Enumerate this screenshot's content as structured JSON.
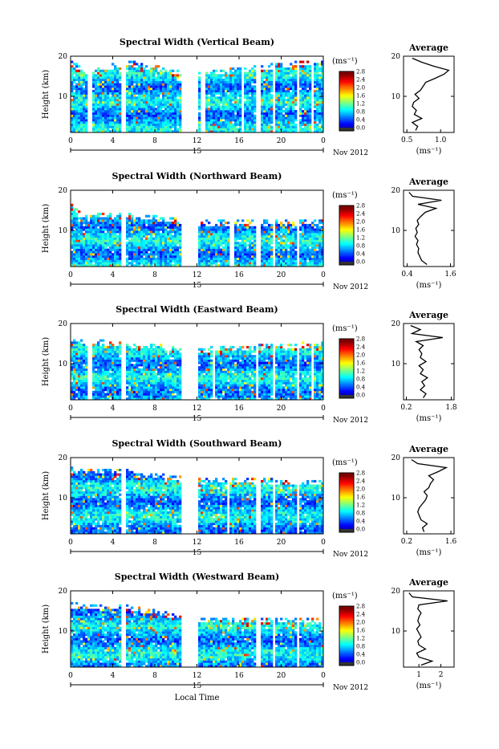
{
  "chart_data": [
    {
      "type": "heatmap",
      "title": "Spectral Width (Vertical Beam)",
      "ylabel": "Height (km)",
      "x_ticks": [
        "0",
        "4",
        "8",
        "12",
        "16",
        "20",
        "0"
      ],
      "y_ticks": [
        "20",
        "10"
      ],
      "ylim": [
        1,
        20
      ],
      "xlim": [
        0,
        24
      ],
      "date_label": "15",
      "month_label": "Nov 2012",
      "colorbar": {
        "unit": "(ms⁻¹)",
        "ticks": [
          "2.8",
          "2.4",
          "2.0",
          "1.6",
          "1.2",
          "0.8",
          "0.4",
          "0.0"
        ],
        "range": [
          0,
          2.8
        ]
      },
      "data_gaps_hours": [
        [
          1.7,
          2.0
        ],
        [
          4.9,
          5.3
        ],
        [
          10.6,
          12.1
        ],
        [
          12.3,
          12.8
        ],
        [
          16.2,
          16.4
        ],
        [
          17.7,
          18.0
        ],
        [
          19.2,
          19.4
        ],
        [
          21.5,
          21.8
        ],
        [
          22.8,
          23.0
        ]
      ],
      "top_km_by_hour": [
        [
          0,
          19.0
        ],
        [
          1.7,
          16.4
        ],
        [
          5.3,
          19.0
        ],
        [
          11.5,
          16.0
        ],
        [
          24,
          19.5
        ]
      ],
      "average_profile": {
        "title": "Average",
        "xlabel": "(ms⁻¹)",
        "x_ticks": [
          "0.5",
          "1.0"
        ],
        "xlim": [
          0.45,
          1.2
        ],
        "y_ticks": [
          "20",
          "10"
        ],
        "ylim": [
          1,
          20
        ],
        "height_km": [
          1.5,
          2.5,
          3.5,
          4.5,
          5.5,
          6.5,
          7.5,
          8.5,
          9.5,
          10.5,
          11.5,
          12.5,
          13.5,
          14.5,
          15.5,
          16.5,
          17.5,
          18.5,
          19.5
        ],
        "values": [
          0.63,
          0.66,
          0.58,
          0.72,
          0.61,
          0.64,
          0.58,
          0.6,
          0.68,
          0.62,
          0.7,
          0.74,
          0.78,
          0.92,
          1.05,
          1.12,
          0.9,
          0.72,
          0.58
        ]
      }
    },
    {
      "type": "heatmap",
      "title": "Spectral Width (Northward Beam)",
      "ylabel": "Height (km)",
      "x_ticks": [
        "0",
        "4",
        "8",
        "12",
        "16",
        "20",
        "0"
      ],
      "y_ticks": [
        "20",
        "10"
      ],
      "ylim": [
        1,
        20
      ],
      "xlim": [
        0,
        24
      ],
      "date_label": "15",
      "month_label": "Nov 2012",
      "colorbar": {
        "unit": "(ms⁻¹)",
        "ticks": [
          "2.8",
          "2.4",
          "2.0",
          "1.6",
          "1.2",
          "0.8",
          "0.4",
          "0.0"
        ],
        "range": [
          0,
          2.8
        ]
      },
      "data_gaps_hours": [
        [
          4.9,
          5.3
        ],
        [
          10.6,
          12.1
        ],
        [
          15.2,
          15.5
        ],
        [
          17.7,
          18.0
        ],
        [
          19.2,
          19.4
        ],
        [
          21.5,
          21.7
        ]
      ],
      "top_km_by_hour": [
        [
          0,
          17.5
        ],
        [
          1.0,
          14.0
        ],
        [
          5.3,
          14.5
        ],
        [
          12.0,
          12.5
        ],
        [
          24,
          12.5
        ]
      ],
      "average_profile": {
        "title": "Average",
        "xlabel": "(ms⁻¹)",
        "x_ticks": [
          "0.4",
          "1.6"
        ],
        "xlim": [
          0.3,
          1.7
        ],
        "y_ticks": [
          "20",
          "10"
        ],
        "ylim": [
          1,
          20
        ],
        "height_km": [
          1.5,
          2.5,
          3.5,
          4.5,
          5.5,
          6.5,
          7.5,
          8.5,
          9.5,
          10.5,
          11.5,
          12.5,
          13.5,
          14.5,
          15.5,
          16.5,
          17.5,
          18.5,
          19.5
        ],
        "values": [
          0.95,
          0.8,
          0.75,
          0.7,
          0.72,
          0.66,
          0.7,
          0.62,
          0.68,
          0.64,
          0.72,
          0.68,
          0.78,
          0.9,
          1.2,
          0.7,
          1.35,
          0.55,
          0.45
        ]
      }
    },
    {
      "type": "heatmap",
      "title": "Spectral Width (Eastward Beam)",
      "ylabel": "Height (km)",
      "x_ticks": [
        "0",
        "4",
        "8",
        "12",
        "16",
        "20",
        "0"
      ],
      "y_ticks": [
        "20",
        "10"
      ],
      "ylim": [
        1,
        20
      ],
      "xlim": [
        0,
        24
      ],
      "date_label": "15",
      "month_label": "Nov 2012",
      "colorbar": {
        "unit": "(ms⁻¹)",
        "ticks": [
          "2.8",
          "2.4",
          "2.0",
          "1.6",
          "1.2",
          "0.8",
          "0.4",
          "0.0"
        ],
        "range": [
          0,
          2.8
        ]
      },
      "data_gaps_hours": [
        [
          1.7,
          2.0
        ],
        [
          4.9,
          5.3
        ],
        [
          10.6,
          12.1
        ],
        [
          13.5,
          13.8
        ],
        [
          17.5,
          17.8
        ],
        [
          19.2,
          19.4
        ],
        [
          21.5,
          21.7
        ],
        [
          22.8,
          23.0
        ]
      ],
      "top_km_by_hour": [
        [
          0,
          16.3
        ],
        [
          5.3,
          15.5
        ],
        [
          12.0,
          14.0
        ],
        [
          24,
          15.5
        ]
      ],
      "average_profile": {
        "title": "Average",
        "xlabel": "(ms⁻¹)",
        "x_ticks": [
          "0.2",
          "1.8"
        ],
        "xlim": [
          0.1,
          1.9
        ],
        "y_ticks": [
          "20",
          "10"
        ],
        "ylim": [
          1,
          20
        ],
        "height_km": [
          1.5,
          2.5,
          3.5,
          4.5,
          5.5,
          6.5,
          7.5,
          8.5,
          9.5,
          10.5,
          11.5,
          12.5,
          13.5,
          14.5,
          15.5,
          16.5,
          17.5,
          18.5,
          19.5
        ],
        "values": [
          0.8,
          0.9,
          0.7,
          0.85,
          0.75,
          0.95,
          0.7,
          0.8,
          0.65,
          0.9,
          0.7,
          0.75,
          0.65,
          0.8,
          0.55,
          1.5,
          0.4,
          0.7,
          0.35
        ]
      }
    },
    {
      "type": "heatmap",
      "title": "Spectral Width (Southward Beam)",
      "ylabel": "Height (km)",
      "x_ticks": [
        "0",
        "4",
        "8",
        "12",
        "16",
        "20",
        "0"
      ],
      "y_ticks": [
        "20",
        "10"
      ],
      "ylim": [
        1,
        20
      ],
      "xlim": [
        0,
        24
      ],
      "date_label": "15",
      "month_label": "Nov 2012",
      "colorbar": {
        "unit": "(ms⁻¹)",
        "ticks": [
          "2.8",
          "2.4",
          "2.0",
          "1.6",
          "1.2",
          "0.8",
          "0.4",
          "0.0"
        ],
        "range": [
          0,
          2.8
        ]
      },
      "data_gaps_hours": [
        [
          4.9,
          5.3
        ],
        [
          10.6,
          12.1
        ],
        [
          14.8,
          15.0
        ],
        [
          17.7,
          18.0
        ],
        [
          19.2,
          19.4
        ],
        [
          21.5,
          21.7
        ]
      ],
      "top_km_by_hour": [
        [
          0,
          17.5
        ],
        [
          5.3,
          17.0
        ],
        [
          12.0,
          15.0
        ],
        [
          24,
          14.5
        ]
      ],
      "average_profile": {
        "title": "Average",
        "xlabel": "(ms⁻¹)",
        "x_ticks": [
          "0.2",
          "1.6"
        ],
        "xlim": [
          0.1,
          1.7
        ],
        "y_ticks": [
          "20",
          "10"
        ],
        "ylim": [
          1,
          20
        ],
        "height_km": [
          1.5,
          2.5,
          3.5,
          4.5,
          5.5,
          6.5,
          7.5,
          8.5,
          9.5,
          10.5,
          11.5,
          12.5,
          13.5,
          14.5,
          15.5,
          16.5,
          17.5,
          18.5,
          19.5
        ],
        "values": [
          0.75,
          0.7,
          0.85,
          0.65,
          0.6,
          0.55,
          0.6,
          0.7,
          0.8,
          0.85,
          0.75,
          0.9,
          0.95,
          1.05,
          0.9,
          1.2,
          1.45,
          0.55,
          0.35
        ]
      }
    },
    {
      "type": "heatmap",
      "title": "Spectral Width (Westward Beam)",
      "ylabel": "Height (km)",
      "xlabel": "Local Time",
      "x_ticks": [
        "0",
        "4",
        "8",
        "12",
        "16",
        "20",
        "0"
      ],
      "y_ticks": [
        "20",
        "10"
      ],
      "ylim": [
        1,
        20
      ],
      "xlim": [
        0,
        24
      ],
      "date_label": "15",
      "month_label": "Nov 2012",
      "colorbar": {
        "unit": "(ms⁻¹)",
        "ticks": [
          "2.8",
          "2.4",
          "2.0",
          "1.6",
          "1.2",
          "0.8",
          "0.4",
          "0.0"
        ],
        "range": [
          0,
          2.8
        ]
      },
      "data_gaps_hours": [
        [
          4.9,
          5.3
        ],
        [
          10.6,
          12.1
        ],
        [
          17.7,
          18.0
        ],
        [
          19.2,
          19.4
        ],
        [
          21.5,
          21.7
        ]
      ],
      "top_km_by_hour": [
        [
          0,
          17.0
        ],
        [
          5.3,
          16.5
        ],
        [
          12.0,
          13.5
        ],
        [
          24,
          13.0
        ]
      ],
      "average_profile": {
        "title": "Average",
        "xlabel": "(ms⁻¹)",
        "x_ticks": [
          "1",
          "2"
        ],
        "xlim": [
          0.3,
          2.6
        ],
        "y_ticks": [
          "20",
          "10"
        ],
        "ylim": [
          1,
          20
        ],
        "height_km": [
          1.5,
          2.5,
          3.5,
          4.5,
          5.5,
          6.5,
          7.5,
          8.5,
          9.5,
          10.5,
          11.5,
          12.5,
          13.5,
          14.5,
          15.5,
          16.5,
          17.5,
          18.5,
          19.5
        ],
        "values": [
          1.1,
          1.6,
          1.0,
          0.9,
          1.3,
          1.0,
          0.95,
          1.1,
          1.0,
          0.9,
          1.05,
          0.95,
          1.0,
          1.1,
          0.95,
          1.0,
          2.3,
          0.7,
          0.55
        ]
      }
    }
  ]
}
